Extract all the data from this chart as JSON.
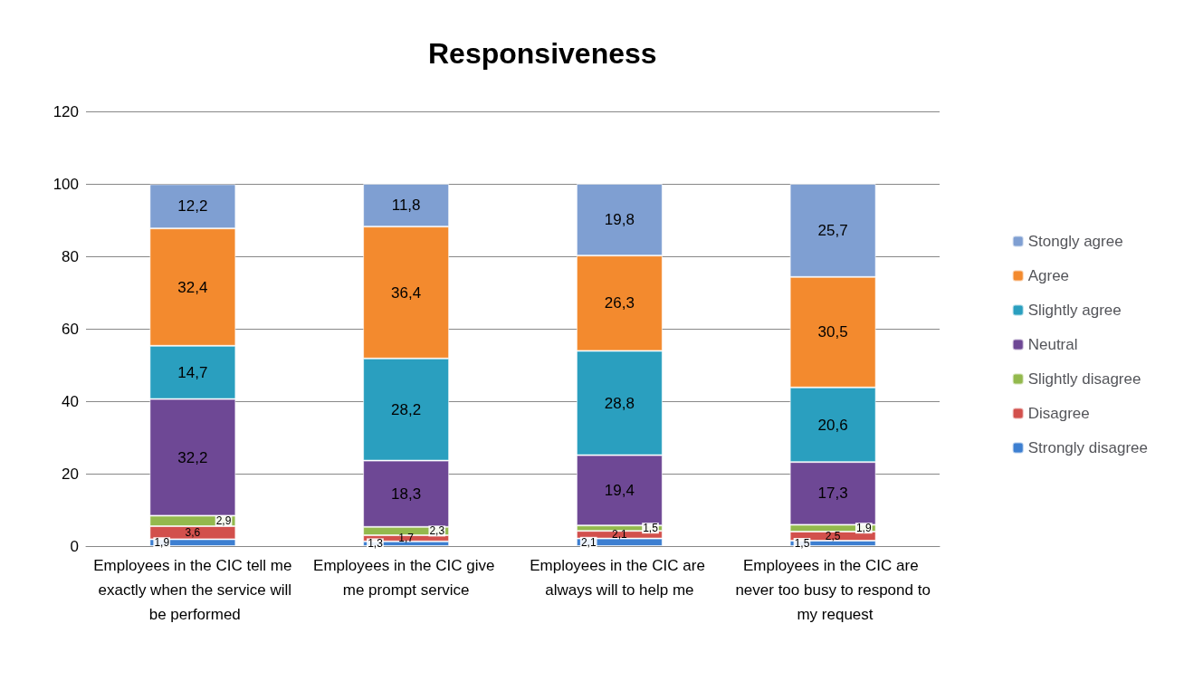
{
  "chart_data": {
    "type": "bar",
    "title": "Responsiveness",
    "stacked": true,
    "categories": [
      "Employees in the CIC tell me exactly when the service will be performed",
      "Employees in the CIC give me prompt service",
      "Employees in the CIC are always will to help me",
      "Employees in the CIC are never too busy to respond to my request"
    ],
    "series": [
      {
        "name": "Strongly disagree",
        "color": "#3d7fd1",
        "values": [
          1.9,
          1.3,
          2.1,
          1.5
        ],
        "value_labels": [
          "1,9",
          "1,3",
          "2,1",
          "1,5"
        ]
      },
      {
        "name": "Disagree",
        "color": "#d2504c",
        "values": [
          3.6,
          1.7,
          2.1,
          2.5
        ],
        "value_labels": [
          "3,6",
          "1,7",
          "2,1",
          "2,5"
        ]
      },
      {
        "name": "Slightly disagree",
        "color": "#93b94d",
        "values": [
          2.9,
          2.3,
          1.5,
          1.9
        ],
        "value_labels": [
          "2,9",
          "2,3",
          "1,5",
          "1,9"
        ]
      },
      {
        "name": "Neutral",
        "color": "#6e4895",
        "values": [
          32.2,
          18.3,
          19.4,
          17.3
        ],
        "value_labels": [
          "32,2",
          "18,3",
          "19,4",
          "17,3"
        ]
      },
      {
        "name": "Slightly agree",
        "color": "#2a9fbf",
        "values": [
          14.7,
          28.2,
          28.8,
          20.6
        ],
        "value_labels": [
          "14,7",
          "28,2",
          "28,8",
          "20,6"
        ]
      },
      {
        "name": "Agree",
        "color": "#f38a2e",
        "values": [
          32.4,
          36.4,
          26.3,
          30.5
        ],
        "value_labels": [
          "32,4",
          "36,4",
          "26,3",
          "30,5"
        ]
      },
      {
        "name": "Stongly agree",
        "color": "#7f9fd2",
        "values": [
          12.2,
          11.8,
          19.8,
          25.7
        ],
        "value_labels": [
          "12,2",
          "11,8",
          "19,8",
          "25,7"
        ]
      }
    ],
    "ylim": [
      0,
      120
    ],
    "yticks": [
      0,
      20,
      40,
      60,
      80,
      100,
      120
    ],
    "grid": "y",
    "legend": "right"
  }
}
